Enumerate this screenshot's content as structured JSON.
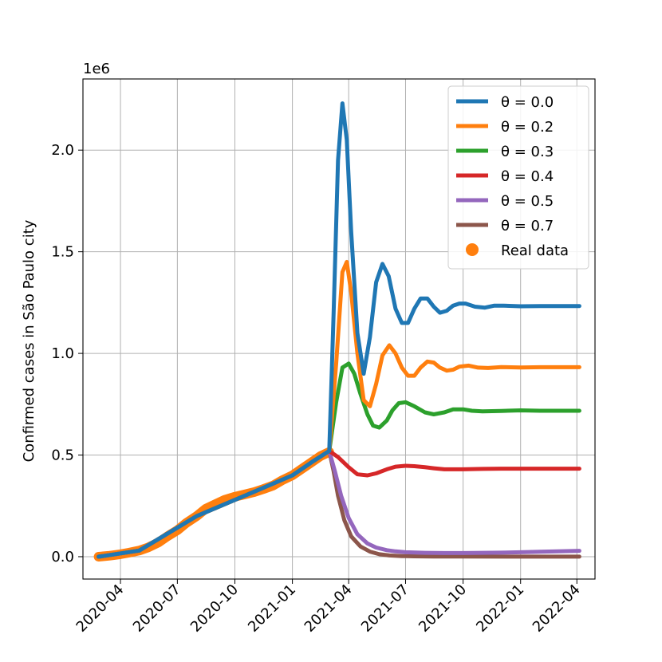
{
  "chart_data": {
    "type": "line",
    "title": "",
    "ylabel": "Confirmed cases in São Paulo city",
    "xlabel": "",
    "y_offset_text": "1e6",
    "y_scale": 1000000,
    "xlim": [
      "2020-02-01",
      "2022-04-30"
    ],
    "ylim": [
      -0.11,
      2.35
    ],
    "x_ticks": [
      "2020-04-01",
      "2020-07-01",
      "2020-10-01",
      "2021-01-01",
      "2021-04-01",
      "2021-07-01",
      "2021-10-01",
      "2022-01-01",
      "2022-04-01"
    ],
    "x_tick_labels": [
      "2020-04",
      "2020-07",
      "2020-10",
      "2021-01",
      "2021-04",
      "2021-07",
      "2021-10",
      "2022-01",
      "2022-04"
    ],
    "y_ticks": [
      0.0,
      0.5,
      1.0,
      1.5,
      2.0
    ],
    "y_tick_labels": [
      "0.0",
      "0.5",
      "1.0",
      "1.5",
      "2.0"
    ],
    "grid": true,
    "legend_position": "top-right",
    "real_data": {
      "name": "Real data",
      "color": "#ff7f0e",
      "x": [
        "2020-02-26",
        "2020-03-15",
        "2020-04-01",
        "2020-04-15",
        "2020-05-01",
        "2020-05-15",
        "2020-06-01",
        "2020-06-15",
        "2020-07-01",
        "2020-07-15",
        "2020-08-01",
        "2020-08-15",
        "2020-09-01",
        "2020-09-15",
        "2020-10-01",
        "2020-10-15",
        "2020-11-01",
        "2020-11-15",
        "2020-12-01",
        "2020-12-15",
        "2021-01-01",
        "2021-01-15",
        "2021-02-01",
        "2021-02-15",
        "2021-03-01"
      ],
      "y": [
        0.0,
        0.005,
        0.012,
        0.02,
        0.03,
        0.045,
        0.07,
        0.1,
        0.13,
        0.165,
        0.2,
        0.235,
        0.26,
        0.28,
        0.295,
        0.305,
        0.318,
        0.332,
        0.35,
        0.375,
        0.4,
        0.43,
        0.465,
        0.495,
        0.515
      ]
    },
    "series": [
      {
        "name": "θ = 0.0",
        "color": "#1f77b4",
        "x": [
          "2020-02-26",
          "2020-05-01",
          "2020-08-01",
          "2020-11-01",
          "2021-01-01",
          "2021-02-01",
          "2021-03-01",
          "2021-03-08",
          "2021-03-15",
          "2021-03-22",
          "2021-03-29",
          "2021-04-05",
          "2021-04-15",
          "2021-04-25",
          "2021-05-05",
          "2021-05-15",
          "2021-05-25",
          "2021-06-04",
          "2021-06-15",
          "2021-06-25",
          "2021-07-05",
          "2021-07-15",
          "2021-07-25",
          "2021-08-05",
          "2021-08-15",
          "2021-08-25",
          "2021-09-05",
          "2021-09-15",
          "2021-09-25",
          "2021-10-05",
          "2021-10-20",
          "2021-11-05",
          "2021-11-20",
          "2021-12-05",
          "2022-01-01",
          "2022-02-01",
          "2022-03-01",
          "2022-04-05"
        ],
        "y": [
          0.0,
          0.03,
          0.2,
          0.32,
          0.4,
          0.465,
          0.52,
          1.2,
          1.95,
          2.23,
          2.05,
          1.6,
          1.1,
          0.9,
          1.08,
          1.35,
          1.44,
          1.38,
          1.22,
          1.15,
          1.15,
          1.22,
          1.27,
          1.27,
          1.23,
          1.2,
          1.21,
          1.235,
          1.245,
          1.245,
          1.23,
          1.225,
          1.235,
          1.235,
          1.232,
          1.233,
          1.233,
          1.233
        ]
      },
      {
        "name": "θ = 0.2",
        "color": "#ff7f0e",
        "x": [
          "2020-02-26",
          "2020-05-01",
          "2020-08-01",
          "2020-11-01",
          "2021-01-01",
          "2021-02-01",
          "2021-03-01",
          "2021-03-12",
          "2021-03-22",
          "2021-03-29",
          "2021-04-05",
          "2021-04-15",
          "2021-04-25",
          "2021-05-05",
          "2021-05-15",
          "2021-05-25",
          "2021-06-05",
          "2021-06-15",
          "2021-06-25",
          "2021-07-05",
          "2021-07-15",
          "2021-07-25",
          "2021-08-05",
          "2021-08-15",
          "2021-08-25",
          "2021-09-05",
          "2021-09-15",
          "2021-09-25",
          "2021-10-10",
          "2021-10-25",
          "2021-11-10",
          "2021-12-01",
          "2022-01-01",
          "2022-02-01",
          "2022-03-01",
          "2022-04-05"
        ],
        "y": [
          0.0,
          0.03,
          0.2,
          0.32,
          0.4,
          0.465,
          0.52,
          0.95,
          1.4,
          1.45,
          1.3,
          1.0,
          0.77,
          0.74,
          0.85,
          0.99,
          1.04,
          1.0,
          0.93,
          0.89,
          0.89,
          0.93,
          0.96,
          0.955,
          0.93,
          0.915,
          0.92,
          0.935,
          0.94,
          0.93,
          0.928,
          0.933,
          0.931,
          0.932,
          0.932,
          0.932
        ]
      },
      {
        "name": "θ = 0.3",
        "color": "#2ca02c",
        "x": [
          "2020-02-26",
          "2020-05-01",
          "2020-08-01",
          "2020-11-01",
          "2021-01-01",
          "2021-02-01",
          "2021-03-01",
          "2021-03-12",
          "2021-03-22",
          "2021-04-01",
          "2021-04-10",
          "2021-04-20",
          "2021-05-01",
          "2021-05-10",
          "2021-05-20",
          "2021-06-01",
          "2021-06-10",
          "2021-06-20",
          "2021-07-01",
          "2021-07-15",
          "2021-08-01",
          "2021-08-15",
          "2021-09-01",
          "2021-09-15",
          "2021-10-01",
          "2021-10-15",
          "2021-11-01",
          "2021-12-01",
          "2022-01-01",
          "2022-02-01",
          "2022-03-01",
          "2022-04-05"
        ],
        "y": [
          0.0,
          0.03,
          0.2,
          0.32,
          0.4,
          0.465,
          0.52,
          0.76,
          0.93,
          0.95,
          0.9,
          0.8,
          0.7,
          0.645,
          0.635,
          0.67,
          0.72,
          0.755,
          0.76,
          0.74,
          0.71,
          0.7,
          0.71,
          0.725,
          0.725,
          0.718,
          0.715,
          0.717,
          0.72,
          0.718,
          0.718,
          0.718
        ]
      },
      {
        "name": "θ = 0.4",
        "color": "#d62728",
        "x": [
          "2020-02-26",
          "2020-05-01",
          "2020-08-01",
          "2020-11-01",
          "2021-01-01",
          "2021-02-01",
          "2021-03-01",
          "2021-03-15",
          "2021-04-01",
          "2021-04-15",
          "2021-05-01",
          "2021-05-15",
          "2021-06-01",
          "2021-06-15",
          "2021-07-01",
          "2021-07-15",
          "2021-08-01",
          "2021-08-15",
          "2021-09-01",
          "2021-10-01",
          "2021-11-01",
          "2021-12-01",
          "2022-01-01",
          "2022-02-01",
          "2022-03-01",
          "2022-04-05"
        ],
        "y": [
          0.0,
          0.03,
          0.2,
          0.32,
          0.4,
          0.465,
          0.52,
          0.49,
          0.44,
          0.405,
          0.4,
          0.41,
          0.43,
          0.443,
          0.447,
          0.445,
          0.44,
          0.435,
          0.43,
          0.43,
          0.432,
          0.433,
          0.433,
          0.433,
          0.433,
          0.433
        ]
      },
      {
        "name": "θ = 0.5",
        "color": "#9467bd",
        "x": [
          "2020-02-26",
          "2020-05-01",
          "2020-08-01",
          "2020-11-01",
          "2021-01-01",
          "2021-02-01",
          "2021-03-01",
          "2021-03-10",
          "2021-03-20",
          "2021-04-01",
          "2021-04-15",
          "2021-05-01",
          "2021-05-15",
          "2021-06-01",
          "2021-06-15",
          "2021-07-01",
          "2021-08-01",
          "2021-09-01",
          "2021-10-01",
          "2021-11-01",
          "2021-12-01",
          "2022-01-01",
          "2022-02-01",
          "2022-03-01",
          "2022-04-05"
        ],
        "y": [
          0.0,
          0.03,
          0.2,
          0.32,
          0.4,
          0.465,
          0.52,
          0.42,
          0.3,
          0.19,
          0.11,
          0.065,
          0.045,
          0.032,
          0.026,
          0.022,
          0.019,
          0.018,
          0.018,
          0.019,
          0.02,
          0.022,
          0.024,
          0.026,
          0.029
        ]
      },
      {
        "name": "θ = 0.7",
        "color": "#8c564b",
        "x": [
          "2020-02-26",
          "2020-05-01",
          "2020-08-01",
          "2020-11-01",
          "2021-01-01",
          "2021-02-01",
          "2021-03-01",
          "2021-03-08",
          "2021-03-15",
          "2021-03-25",
          "2021-04-05",
          "2021-04-20",
          "2021-05-05",
          "2021-05-20",
          "2021-06-05",
          "2021-06-25",
          "2021-07-15",
          "2021-08-15",
          "2021-10-01",
          "2022-01-01",
          "2022-04-05"
        ],
        "y": [
          0.0,
          0.03,
          0.2,
          0.32,
          0.4,
          0.465,
          0.52,
          0.42,
          0.3,
          0.18,
          0.1,
          0.05,
          0.025,
          0.012,
          0.006,
          0.003,
          0.002,
          0.001,
          0.0005,
          0.0002,
          0.0001
        ]
      }
    ]
  }
}
